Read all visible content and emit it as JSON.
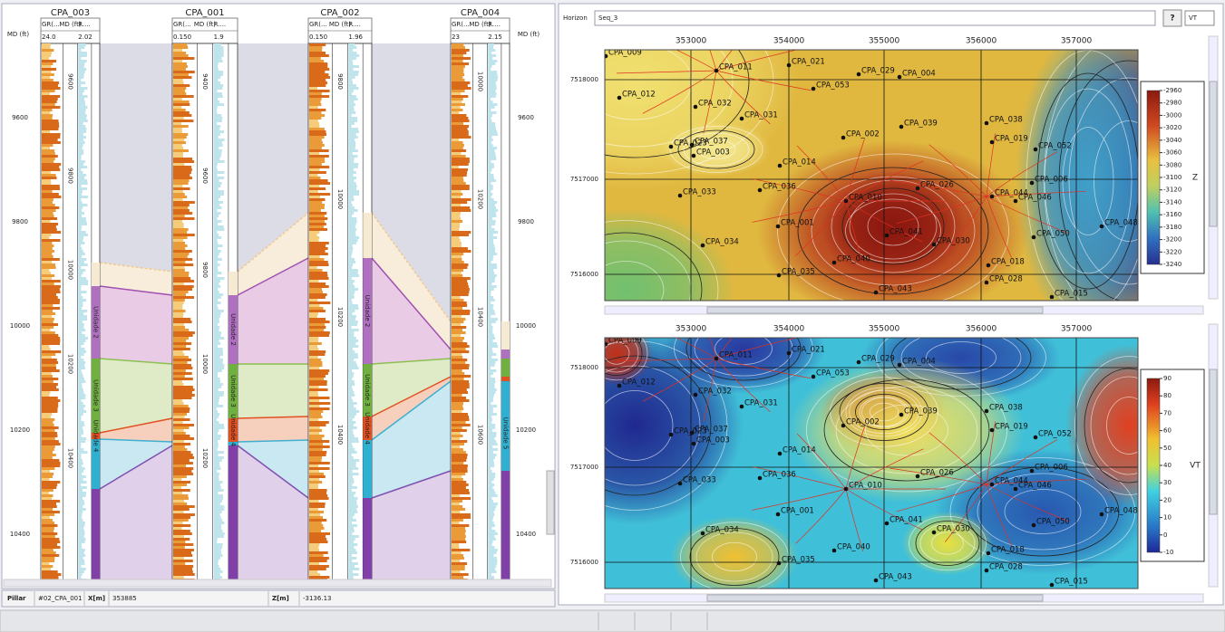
{
  "left_panel": {
    "depth_header": "MD (ft)",
    "depth_labels": [
      "9600",
      "9800",
      "10000",
      "10200",
      "10400"
    ],
    "wells": [
      {
        "name": "CPA_003",
        "gr_label": "GR(...",
        "md_label": "MD (ft)",
        "r_label": "R....",
        "gr_scale": "24.0",
        "r_scale": "2.02",
        "md_labels": [
          "9600",
          "9800",
          "10000",
          "10200",
          "10400"
        ],
        "zones": [
          "Unidade 2",
          "Unidade 3",
          "Unidade 4"
        ]
      },
      {
        "name": "CPA_001",
        "gr_label": "GR(...",
        "md_label": "MD (ft)",
        "r_label": "R....",
        "gr_scale": "0.150",
        "r_scale": "1.9",
        "md_labels": [
          "9400",
          "9600",
          "9800",
          "10000",
          "10200"
        ],
        "zones": [
          "Unidade 2",
          "Unidade 3",
          "Unidade 4"
        ]
      },
      {
        "name": "CPA_002",
        "gr_label": "GR(...",
        "md_label": "MD (ft)",
        "r_label": "R....",
        "gr_scale": "0.150",
        "r_scale": "1.96",
        "md_labels": [
          "9800",
          "10000",
          "10200",
          "10400"
        ],
        "zones": [
          "Unidade 2",
          "Unidade 3",
          "Unidade 4"
        ]
      },
      {
        "name": "CPA_004",
        "gr_label": "GR(...",
        "md_label": "MD (ft)",
        "r_label": "R....",
        "gr_scale": "23",
        "r_scale": "2.15",
        "md_labels": [
          "10000",
          "10200",
          "10400",
          "10600"
        ],
        "zones": [
          "Unidade 5"
        ]
      }
    ]
  },
  "status_bar": {
    "pillar_label": "Pillar",
    "pillar_value": "#02_CPA_001",
    "x_label": "X[m]",
    "x_value": "353885",
    "z_label": "Z[m]",
    "z_value": "-3136.13"
  },
  "right_panel": {
    "horizon_label": "Horizon",
    "horizon_value": "Seq_3",
    "help": "?",
    "attribute": "VT",
    "maps": [
      {
        "x_ticks": [
          "353000",
          "354000",
          "355000",
          "356000",
          "357000"
        ],
        "y_ticks": [
          "7518000",
          "7517000",
          "7516000"
        ],
        "colorbar_title": "Z",
        "colorbar_ticks": [
          "-2960",
          "-2980",
          "-3000",
          "-3020",
          "-3040",
          "-3060",
          "-3080",
          "-3100",
          "-3120",
          "-3140",
          "-3160",
          "-3180",
          "-3200",
          "-3220",
          "-3240"
        ],
        "wells": [
          "CPA_009",
          "CPA_011",
          "CPA_021",
          "CPA_029",
          "CPA_004",
          "CPA_053",
          "CPA_012",
          "CPA_032",
          "CPA_031",
          "CPA_039",
          "CPA_038",
          "CPA_023",
          "CPA_037",
          "CPA_003",
          "CPA_002",
          "CPA_019",
          "CPA_052",
          "CPA_014",
          "CPA_036",
          "CPA_026",
          "CPA_006",
          "CPA_033",
          "CPA_010",
          "CPA_044",
          "CPA_046",
          "CPA_001",
          "CPA_041",
          "CPA_030",
          "CPA_050",
          "CPA_048",
          "CPA_034",
          "CPA_040",
          "CPA_018",
          "CPA_035",
          "CPA_043",
          "CPA_028",
          "CPA_015"
        ]
      },
      {
        "x_ticks": [
          "353000",
          "354000",
          "355000",
          "356000",
          "357000"
        ],
        "y_ticks": [
          "7518000",
          "7517000",
          "7516000"
        ],
        "colorbar_title": "VT",
        "colorbar_ticks": [
          "90",
          "80",
          "70",
          "60",
          "50",
          "40",
          "30",
          "20",
          "10",
          "0",
          "-10"
        ],
        "wells": [
          "CPA_009",
          "CPA_011",
          "CPA_021",
          "CPA_029",
          "CPA_004",
          "CPA_053",
          "CPA_012",
          "CPA_032",
          "CPA_031",
          "CPA_039",
          "CPA_038",
          "CPA_023",
          "CPA_037",
          "CPA_003",
          "CPA_002",
          "CPA_019",
          "CPA_052",
          "CPA_014",
          "CPA_036",
          "CPA_026",
          "CPA_006",
          "CPA_033",
          "CPA_010",
          "CPA_044",
          "CPA_046",
          "CPA_001",
          "CPA_041",
          "CPA_030",
          "CPA_050",
          "CPA_048",
          "CPA_034",
          "CPA_040",
          "CPA_018",
          "CPA_035",
          "CPA_043",
          "CPA_028",
          "CPA_015"
        ]
      }
    ]
  }
}
